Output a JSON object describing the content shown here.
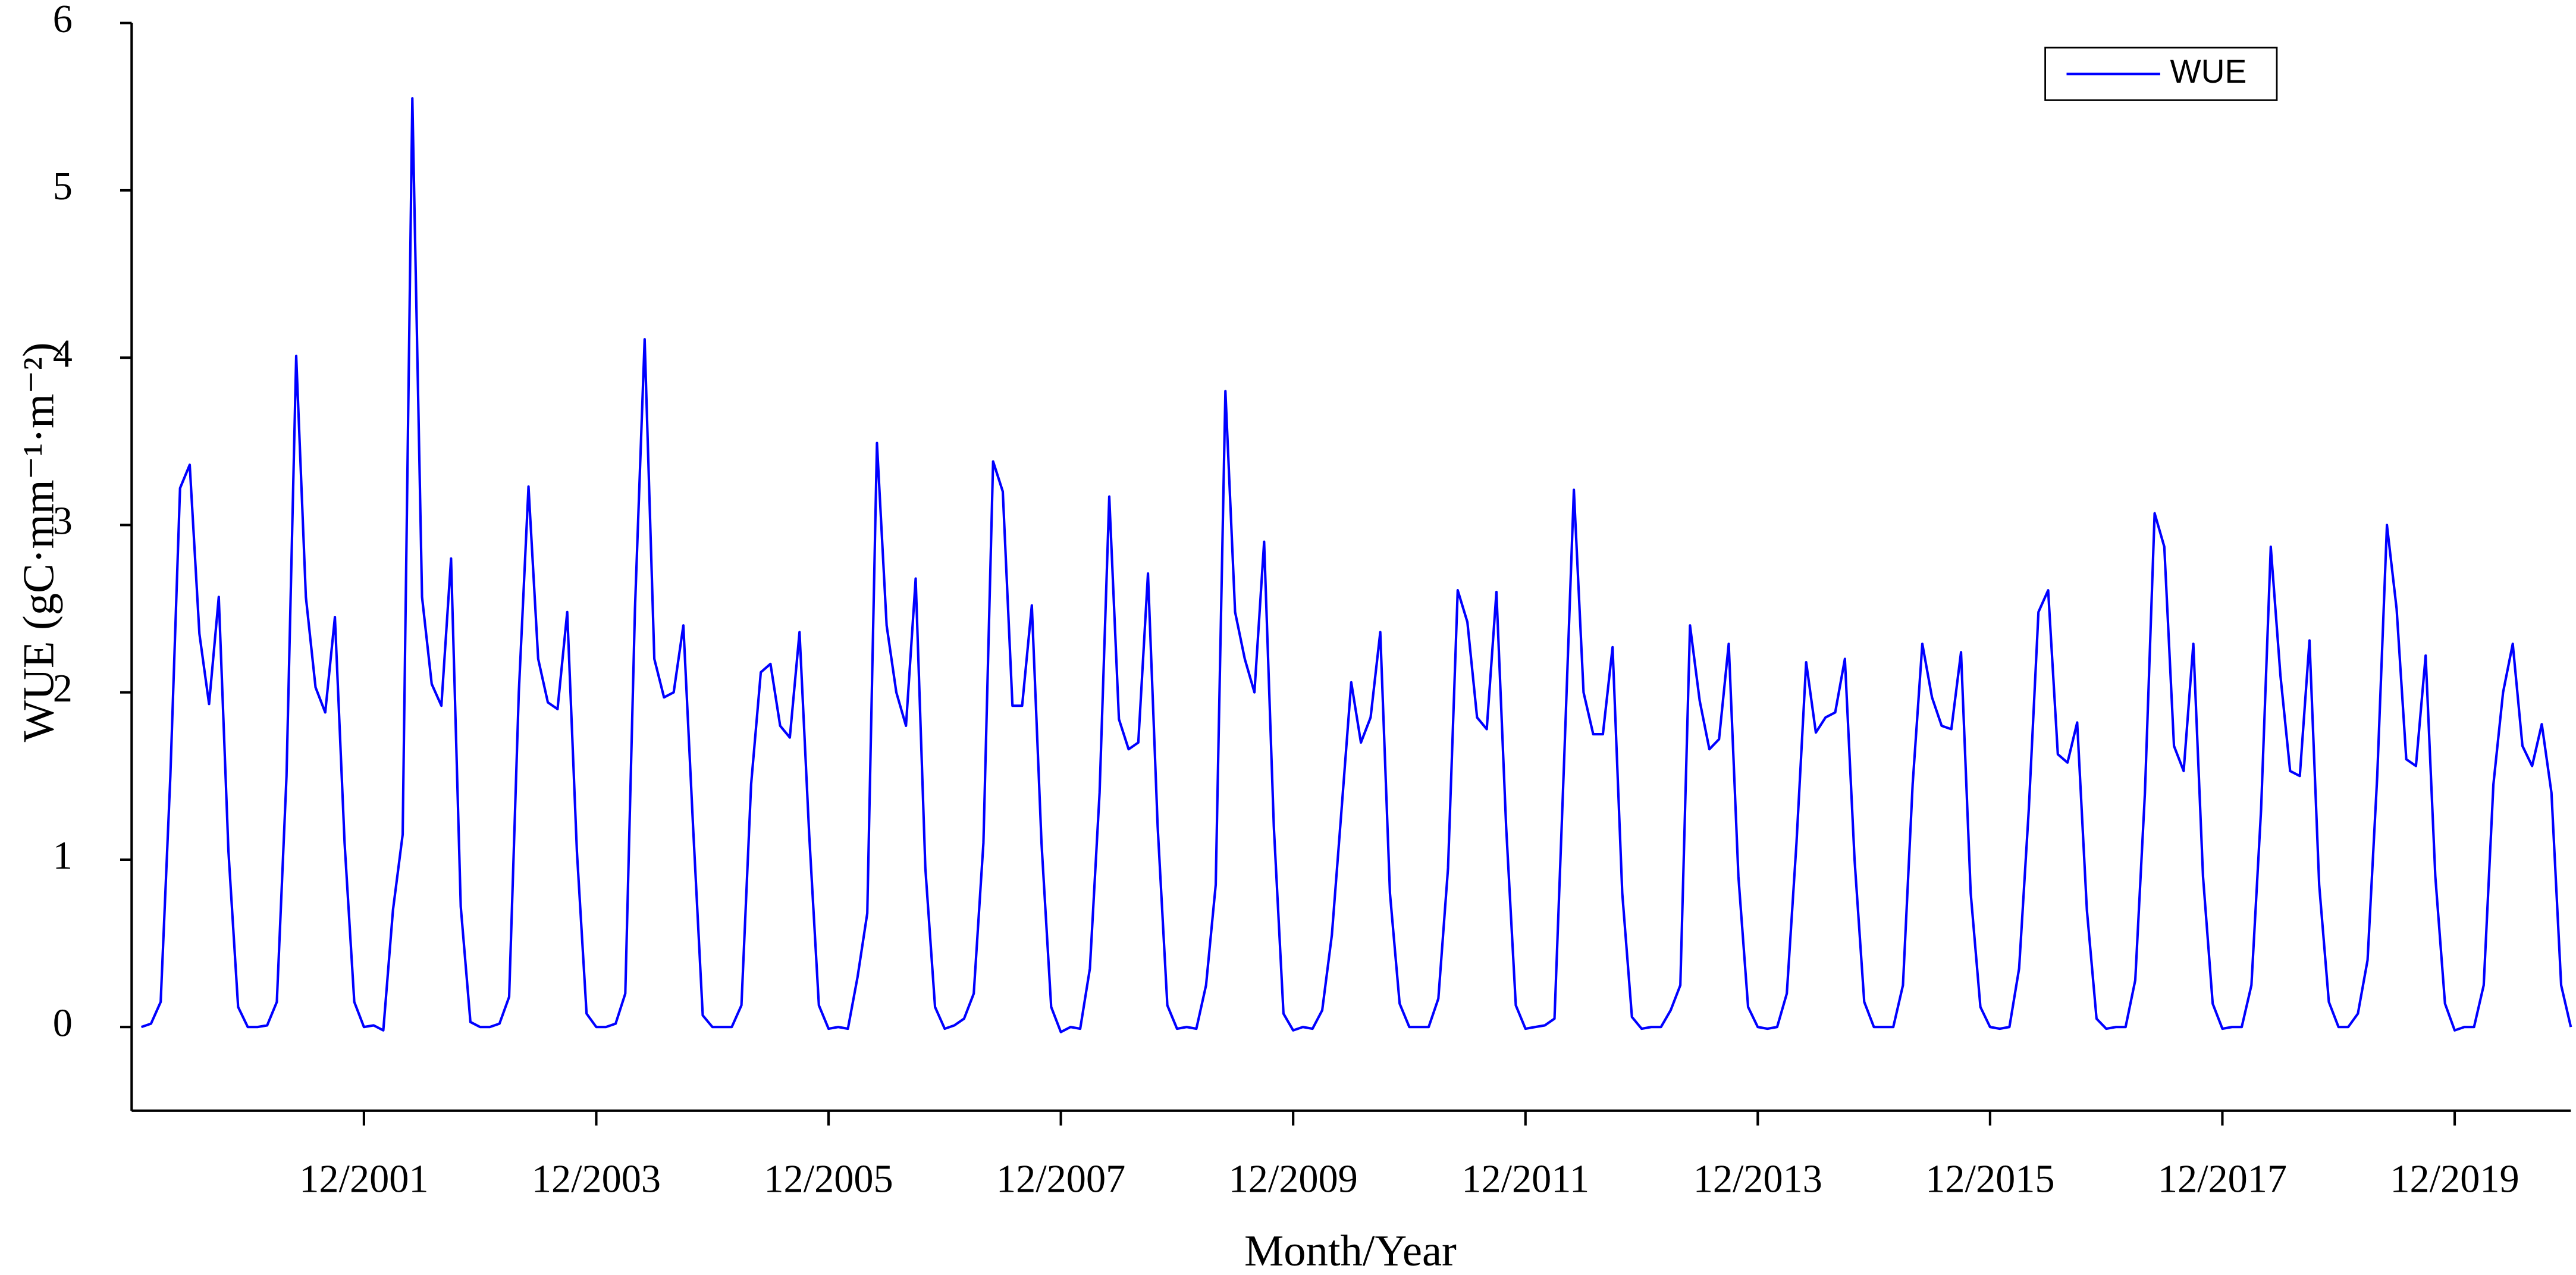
{
  "chart_data": {
    "type": "line",
    "x_label": "Month/Year",
    "y_label": "WUE (gC·mm⁻¹·m⁻²)",
    "categories": [
      "01/2000",
      "02/2000",
      "03/2000",
      "04/2000",
      "05/2000",
      "06/2000",
      "07/2000",
      "08/2000",
      "09/2000",
      "10/2000",
      "11/2000",
      "12/2000",
      "01/2001",
      "02/2001",
      "03/2001",
      "04/2001",
      "05/2001",
      "06/2001",
      "07/2001",
      "08/2001",
      "09/2001",
      "10/2001",
      "11/2001",
      "12/2001",
      "01/2002",
      "02/2002",
      "03/2002",
      "04/2002",
      "05/2002",
      "06/2002",
      "07/2002",
      "08/2002",
      "09/2002",
      "10/2002",
      "11/2002",
      "12/2002",
      "01/2003",
      "02/2003",
      "03/2003",
      "04/2003",
      "05/2003",
      "06/2003",
      "07/2003",
      "08/2003",
      "09/2003",
      "10/2003",
      "11/2003",
      "12/2003",
      "01/2004",
      "02/2004",
      "03/2004",
      "04/2004",
      "05/2004",
      "06/2004",
      "07/2004",
      "08/2004",
      "09/2004",
      "10/2004",
      "11/2004",
      "12/2004",
      "01/2005",
      "02/2005",
      "03/2005",
      "04/2005",
      "05/2005",
      "06/2005",
      "07/2005",
      "08/2005",
      "09/2005",
      "10/2005",
      "11/2005",
      "12/2005",
      "01/2006",
      "02/2006",
      "03/2006",
      "04/2006",
      "05/2006",
      "06/2006",
      "07/2006",
      "08/2006",
      "09/2006",
      "10/2006",
      "11/2006",
      "12/2006",
      "01/2007",
      "02/2007",
      "03/2007",
      "04/2007",
      "05/2007",
      "06/2007",
      "07/2007",
      "08/2007",
      "09/2007",
      "10/2007",
      "11/2007",
      "12/2007",
      "01/2008",
      "02/2008",
      "03/2008",
      "04/2008",
      "05/2008",
      "06/2008",
      "07/2008",
      "08/2008",
      "09/2008",
      "10/2008",
      "11/2008",
      "12/2008",
      "01/2009",
      "02/2009",
      "03/2009",
      "04/2009",
      "05/2009",
      "06/2009",
      "07/2009",
      "08/2009",
      "09/2009",
      "10/2009",
      "11/2009",
      "12/2009",
      "01/2010",
      "02/2010",
      "03/2010",
      "04/2010",
      "05/2010",
      "06/2010",
      "07/2010",
      "08/2010",
      "09/2010",
      "10/2010",
      "11/2010",
      "12/2010",
      "01/2011",
      "02/2011",
      "03/2011",
      "04/2011",
      "05/2011",
      "06/2011",
      "07/2011",
      "08/2011",
      "09/2011",
      "10/2011",
      "11/2011",
      "12/2011",
      "01/2012",
      "02/2012",
      "03/2012",
      "04/2012",
      "05/2012",
      "06/2012",
      "07/2012",
      "08/2012",
      "09/2012",
      "10/2012",
      "11/2012",
      "12/2012",
      "01/2013",
      "02/2013",
      "03/2013",
      "04/2013",
      "05/2013",
      "06/2013",
      "07/2013",
      "08/2013",
      "09/2013",
      "10/2013",
      "11/2013",
      "12/2013",
      "01/2014",
      "02/2014",
      "03/2014",
      "04/2014",
      "05/2014",
      "06/2014",
      "07/2014",
      "08/2014",
      "09/2014",
      "10/2014",
      "11/2014",
      "12/2014",
      "01/2015",
      "02/2015",
      "03/2015",
      "04/2015",
      "05/2015",
      "06/2015",
      "07/2015",
      "08/2015",
      "09/2015",
      "10/2015",
      "11/2015",
      "12/2015",
      "01/2016",
      "02/2016",
      "03/2016",
      "04/2016",
      "05/2016",
      "06/2016",
      "07/2016",
      "08/2016",
      "09/2016",
      "10/2016",
      "11/2016",
      "12/2016",
      "01/2017",
      "02/2017",
      "03/2017",
      "04/2017",
      "05/2017",
      "06/2017",
      "07/2017",
      "08/2017",
      "09/2017",
      "10/2017",
      "11/2017",
      "12/2017",
      "01/2018",
      "02/2018",
      "03/2018",
      "04/2018",
      "05/2018",
      "06/2018",
      "07/2018",
      "08/2018",
      "09/2018",
      "10/2018",
      "11/2018",
      "12/2018",
      "01/2019",
      "02/2019",
      "03/2019",
      "04/2019",
      "05/2019",
      "06/2019",
      "07/2019",
      "08/2019",
      "09/2019",
      "10/2019",
      "11/2019",
      "12/2019",
      "01/2020",
      "02/2020",
      "03/2020",
      "04/2020",
      "05/2020",
      "06/2020",
      "07/2020",
      "08/2020",
      "09/2020",
      "10/2020",
      "11/2020",
      "12/2020"
    ],
    "series": [
      {
        "name": "WUE",
        "color": "#0000ff",
        "values": [
          0,
          0.02,
          0.15,
          1.5,
          3.22,
          3.36,
          2.35,
          1.93,
          2.57,
          1.05,
          0.12,
          0,
          0,
          0.01,
          0.15,
          1.5,
          4.01,
          2.57,
          2.03,
          1.88,
          2.45,
          1.1,
          0.15,
          0,
          0.01,
          -0.02,
          0.7,
          1.15,
          5.55,
          2.57,
          2.05,
          1.92,
          2.8,
          0.72,
          0.03,
          0,
          0,
          0.02,
          0.18,
          2.0,
          3.23,
          2.2,
          1.94,
          1.9,
          2.48,
          1.05,
          0.08,
          0,
          0,
          0.02,
          0.2,
          2.5,
          4.11,
          2.2,
          1.97,
          2.0,
          2.4,
          1.2,
          0.07,
          0,
          0,
          0,
          0.13,
          1.45,
          2.12,
          2.17,
          1.8,
          1.73,
          2.36,
          1.15,
          0.13,
          -0.01,
          0,
          -0.01,
          0.3,
          0.68,
          3.49,
          2.4,
          2.0,
          1.8,
          2.68,
          0.95,
          0.12,
          -0.01,
          0.01,
          0.05,
          0.2,
          1.1,
          3.38,
          3.2,
          1.92,
          1.92,
          2.52,
          1.1,
          0.12,
          -0.03,
          0,
          -0.01,
          0.35,
          1.4,
          3.17,
          1.84,
          1.66,
          1.7,
          2.71,
          1.2,
          0.13,
          -0.01,
          0,
          -0.01,
          0.25,
          0.85,
          3.8,
          2.48,
          2.2,
          2.0,
          2.9,
          1.2,
          0.08,
          -0.02,
          0,
          -0.01,
          0.1,
          0.55,
          1.3,
          2.06,
          1.7,
          1.85,
          2.36,
          0.8,
          0.14,
          0,
          0,
          0,
          0.17,
          0.95,
          2.61,
          2.42,
          1.85,
          1.78,
          2.6,
          1.2,
          0.13,
          -0.01,
          0,
          0.01,
          0.05,
          1.6,
          3.21,
          2.0,
          1.75,
          1.75,
          2.27,
          0.8,
          0.06,
          -0.01,
          0,
          0,
          0.1,
          0.25,
          2.4,
          1.95,
          1.66,
          1.72,
          2.29,
          0.9,
          0.12,
          0,
          -0.01,
          0,
          0.2,
          1.1,
          2.18,
          1.76,
          1.85,
          1.88,
          2.2,
          1.0,
          0.15,
          0,
          0,
          0,
          0.25,
          1.45,
          2.29,
          1.97,
          1.8,
          1.78,
          2.24,
          0.8,
          0.12,
          0,
          -0.01,
          0,
          0.35,
          1.3,
          2.48,
          2.61,
          1.63,
          1.58,
          1.82,
          0.7,
          0.05,
          -0.01,
          0,
          0,
          0.28,
          1.4,
          3.07,
          2.87,
          1.68,
          1.53,
          2.29,
          0.9,
          0.14,
          -0.01,
          0,
          0,
          0.25,
          1.3,
          2.87,
          2.1,
          1.53,
          1.5,
          2.31,
          0.85,
          0.15,
          0,
          0,
          0.08,
          0.4,
          1.5,
          3.0,
          2.5,
          1.6,
          1.56,
          2.22,
          0.9,
          0.14,
          -0.02,
          0,
          0,
          0.25,
          1.45,
          2.0,
          2.29,
          1.68,
          1.56,
          1.81,
          1.4,
          0.25,
          0
        ]
      }
    ],
    "ylim": [
      -0.5,
      6
    ],
    "yticks": [
      0,
      1,
      2,
      3,
      4,
      5,
      6
    ],
    "xticks": [
      "12/2001",
      "12/2003",
      "12/2005",
      "12/2007",
      "12/2009",
      "12/2011",
      "12/2013",
      "12/2015",
      "12/2017",
      "12/2019"
    ],
    "legend": "upper right"
  }
}
